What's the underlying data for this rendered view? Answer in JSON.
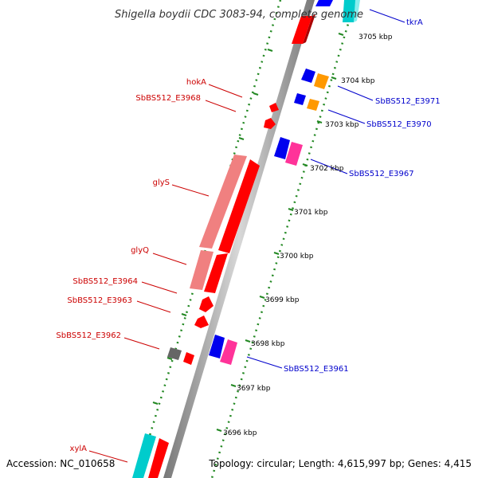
{
  "title": "Shigella boydii CDC 3083-94, complete genome",
  "footer": {
    "accession": "Accession: NC_010658",
    "summary": "Topology: circular; Length: 4,615,997 bp; Genes: 4,415"
  },
  "ruler_labels": [
    "3705 kbp",
    "3704 kbp",
    "3703 kbp",
    "3702 kbp",
    "3701 kbp",
    "3700 kbp",
    "3699 kbp",
    "3698 kbp",
    "3697 kbp",
    "3696 kbp"
  ],
  "genes_left": [
    {
      "name": "hokA",
      "color": "#cc0000"
    },
    {
      "name": "SbBS512_E3968",
      "color": "#cc0000"
    },
    {
      "name": "glyS",
      "color": "#cc0000"
    },
    {
      "name": "glyQ",
      "color": "#cc0000"
    },
    {
      "name": "SbBS512_E3964",
      "color": "#cc0000"
    },
    {
      "name": "SbBS512_E3963",
      "color": "#cc0000"
    },
    {
      "name": "SbBS512_E3962",
      "color": "#cc0000"
    },
    {
      "name": "xylA",
      "color": "#cc0000"
    }
  ],
  "genes_right": [
    {
      "name": "tkrA",
      "color": "#0000cc"
    },
    {
      "name": "SbBS512_E3971",
      "color": "#0000cc"
    },
    {
      "name": "SbBS512_E3970",
      "color": "#0000cc"
    },
    {
      "name": "SbBS512_E3967",
      "color": "#0000cc"
    },
    {
      "name": "SbBS512_E3961",
      "color": "#0000cc"
    }
  ],
  "colors": {
    "forward_strand": "#ff0000",
    "forward_rna": "#f08080",
    "reverse_strand": "#0000ff",
    "pink_feature": "#ff3399",
    "orange_feature": "#ff9900",
    "cyan_feature": "#00cccc",
    "gray_feature": "#666666",
    "backbone": "#999999",
    "tick_green": "#228822"
  }
}
